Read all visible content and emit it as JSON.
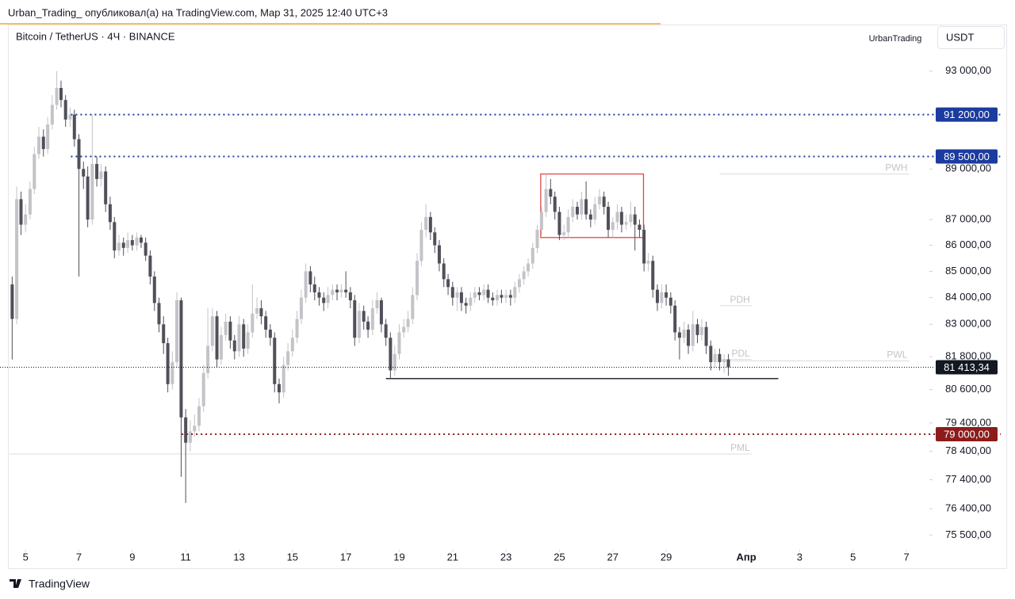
{
  "header": {
    "publisher": "Urban_Trading_ опубликовал(а) на TradingView.com, Мар 31, 2025 12:40 UTC+3",
    "brand": "TradingView"
  },
  "chart_data": {
    "type": "candlestick",
    "title": "Bitcoin / TetherUS · 4Ч · BINANCE",
    "author": "UrbanTrading",
    "currency": "USDT",
    "log_scale": true,
    "up_color": "#c3c3c8",
    "down_color": "#50505a",
    "xlim": [
      4.4,
      38.8
    ],
    "ylim": [
      75000,
      95000
    ],
    "xticks": [
      5,
      7,
      9,
      11,
      13,
      15,
      17,
      19,
      21,
      23,
      25,
      27,
      29,
      {
        "value": 32,
        "label": "Апр"
      },
      {
        "value": 34,
        "label": "3"
      },
      {
        "value": 36,
        "label": "5"
      },
      {
        "value": 38,
        "label": "7"
      }
    ],
    "yticks": [
      {
        "value": 93000,
        "label": "93 000,00"
      },
      {
        "value": 89000,
        "label": "89 000,00"
      },
      {
        "value": 87000,
        "label": "87 000,00"
      },
      {
        "value": 86000,
        "label": "86 000,00"
      },
      {
        "value": 85000,
        "label": "85 000,00"
      },
      {
        "value": 84000,
        "label": "84 000,00"
      },
      {
        "value": 83000,
        "label": "83 000,00"
      },
      {
        "value": 81800,
        "label": "81 800,00"
      },
      {
        "value": 80600,
        "label": "80 600,00"
      },
      {
        "value": 79400,
        "label": "79 400,00"
      },
      {
        "value": 78400,
        "label": "78 400,00"
      },
      {
        "value": 77400,
        "label": "77 400,00"
      },
      {
        "value": 76400,
        "label": "76 400,00"
      },
      {
        "value": 75500,
        "label": "75 500,00"
      }
    ],
    "x": [
      4.5,
      4.67,
      4.83,
      5,
      5.17,
      5.33,
      5.5,
      5.67,
      5.83,
      6,
      6.17,
      6.33,
      6.5,
      6.67,
      6.83,
      7,
      7.17,
      7.33,
      7.5,
      7.67,
      7.83,
      8,
      8.17,
      8.33,
      8.5,
      8.67,
      8.83,
      9,
      9.17,
      9.33,
      9.5,
      9.67,
      9.83,
      10,
      10.17,
      10.33,
      10.5,
      10.67,
      10.83,
      11,
      11.17,
      11.33,
      11.5,
      11.67,
      11.83,
      12,
      12.17,
      12.33,
      12.5,
      12.67,
      12.83,
      13,
      13.17,
      13.33,
      13.5,
      13.67,
      13.83,
      14,
      14.17,
      14.33,
      14.5,
      14.67,
      14.83,
      15,
      15.17,
      15.33,
      15.5,
      15.67,
      15.83,
      16,
      16.17,
      16.33,
      16.5,
      16.67,
      16.83,
      17,
      17.17,
      17.33,
      17.5,
      17.67,
      17.83,
      18,
      18.17,
      18.33,
      18.5,
      18.67,
      18.83,
      19,
      19.17,
      19.33,
      19.5,
      19.67,
      19.83,
      20,
      20.17,
      20.33,
      20.5,
      20.67,
      20.83,
      21,
      21.17,
      21.33,
      21.5,
      21.67,
      21.83,
      22,
      22.17,
      22.33,
      22.5,
      22.67,
      22.83,
      23,
      23.17,
      23.33,
      23.5,
      23.67,
      23.83,
      24,
      24.17,
      24.33,
      24.5,
      24.67,
      24.83,
      25,
      25.17,
      25.33,
      25.5,
      25.67,
      25.83,
      26,
      26.17,
      26.33,
      26.5,
      26.67,
      26.83,
      27,
      27.17,
      27.33,
      27.5,
      27.67,
      27.83,
      28,
      28.17,
      28.33,
      28.5,
      28.67,
      28.83,
      29,
      29.17,
      29.33,
      29.5,
      29.67,
      29.83,
      30,
      30.17,
      30.33,
      30.5,
      30.67,
      30.83,
      31,
      31.17,
      31.33
    ],
    "open": [
      84500,
      83200,
      87800,
      86800,
      87200,
      88200,
      89600,
      90300,
      89800,
      90800,
      91600,
      92300,
      91800,
      91000,
      91200,
      90200,
      89000,
      88700,
      87000,
      89200,
      88600,
      88900,
      87600,
      86900,
      85800,
      86100,
      85900,
      86200,
      86000,
      86300,
      86100,
      85600,
      84800,
      83800,
      83000,
      82300,
      80800,
      81600,
      83900,
      79600,
      78700,
      79100,
      79300,
      80000,
      81200,
      82200,
      83300,
      81700,
      82600,
      83100,
      82400,
      82000,
      83000,
      82100,
      82700,
      83400,
      83600,
      83300,
      82800,
      82500,
      80800,
      80500,
      81500,
      82000,
      82500,
      83200,
      84000,
      85000,
      84500,
      84200,
      84000,
      83800,
      84100,
      84300,
      84200,
      84300,
      84200,
      83900,
      82500,
      83500,
      83100,
      82800,
      83600,
      83900,
      83000,
      82500,
      81300,
      81900,
      82700,
      82900,
      83200,
      84100,
      85400,
      86600,
      87100,
      86500,
      86000,
      85300,
      84700,
      84400,
      84000,
      84200,
      83800,
      83700,
      84000,
      84200,
      84100,
      84300,
      84000,
      83900,
      84100,
      84000,
      84100,
      84000,
      84400,
      84700,
      85000,
      85300,
      85900,
      86600,
      87300,
      88200,
      87900,
      87300,
      86400,
      86500,
      87100,
      87500,
      87200,
      87800,
      87200,
      87000,
      87600,
      87900,
      87500,
      86600,
      86900,
      87300,
      86800,
      86900,
      87200,
      86800,
      86600,
      85300,
      85400,
      84300,
      83800,
      84200,
      84000,
      83700,
      82700,
      82500,
      82800,
      82200,
      83000,
      82600,
      82900,
      82200,
      81600,
      81900,
      81600,
      81700
    ],
    "high": [
      84800,
      88300,
      88100,
      87600,
      88500,
      89900,
      90700,
      90600,
      91100,
      92000,
      93000,
      92600,
      92000,
      91500,
      91400,
      90400,
      89300,
      89100,
      91200,
      89500,
      89200,
      89100,
      87900,
      87100,
      86400,
      86300,
      86500,
      86400,
      86500,
      86400,
      86300,
      85800,
      85000,
      84000,
      83300,
      82500,
      82000,
      84200,
      84000,
      79900,
      79500,
      79700,
      80300,
      81500,
      83600,
      83600,
      83500,
      82900,
      83400,
      83300,
      82600,
      83300,
      83200,
      83000,
      84500,
      84000,
      83900,
      83500,
      83000,
      82700,
      81000,
      81800,
      82300,
      82800,
      83500,
      84300,
      85300,
      85200,
      84800,
      84400,
      84200,
      84400,
      84500,
      84500,
      84500,
      85000,
      84400,
      84100,
      83800,
      83700,
      83300,
      83900,
      84200,
      84000,
      83200,
      82700,
      82200,
      83000,
      83200,
      83500,
      84400,
      85700,
      86900,
      87600,
      87300,
      86700,
      86200,
      85500,
      84900,
      84600,
      84400,
      84400,
      84000,
      84200,
      84400,
      84400,
      84500,
      84500,
      84200,
      84300,
      84300,
      84300,
      84300,
      84600,
      84900,
      85200,
      85500,
      86100,
      86800,
      87500,
      88800,
      88600,
      88100,
      87500,
      86800,
      87400,
      87800,
      87700,
      88100,
      88500,
      87400,
      87900,
      88200,
      88100,
      87700,
      87100,
      87600,
      87500,
      87200,
      87700,
      87500,
      87000,
      86800,
      85700,
      85600,
      84500,
      84500,
      84500,
      84200,
      83900,
      82900,
      83100,
      83000,
      83500,
      83200,
      83200,
      83100,
      82400,
      82100,
      82100,
      81900,
      81900
    ],
    "low": [
      81700,
      83000,
      86400,
      86500,
      87000,
      88000,
      89400,
      89500,
      89600,
      90600,
      91400,
      91500,
      90700,
      90700,
      89900,
      84800,
      88200,
      86700,
      86800,
      88300,
      88300,
      87300,
      86600,
      85500,
      85600,
      85600,
      85700,
      85800,
      85800,
      85900,
      85400,
      84500,
      83500,
      82700,
      81900,
      80500,
      80600,
      81400,
      77500,
      76600,
      78400,
      78900,
      79100,
      79800,
      81000,
      82000,
      81400,
      81500,
      82400,
      82100,
      81700,
      81800,
      81800,
      81900,
      82500,
      83200,
      83000,
      82500,
      82200,
      80500,
      80100,
      80300,
      81300,
      81800,
      82300,
      83000,
      83800,
      84200,
      83900,
      83700,
      83500,
      83600,
      83900,
      83900,
      84000,
      84000,
      83600,
      82200,
      82300,
      82800,
      82500,
      82600,
      83400,
      82700,
      82200,
      81000,
      81100,
      81700,
      82500,
      82700,
      83000,
      83900,
      85200,
      86300,
      86200,
      85700,
      85000,
      84400,
      84100,
      83700,
      83500,
      83500,
      83400,
      83500,
      83800,
      83900,
      83900,
      83800,
      83700,
      83700,
      83800,
      83800,
      83700,
      83800,
      84200,
      84500,
      84800,
      85100,
      85700,
      86400,
      87100,
      87600,
      87000,
      86200,
      86200,
      86300,
      86900,
      87000,
      87000,
      87000,
      86700,
      86800,
      87400,
      87200,
      86300,
      86300,
      86600,
      86500,
      86600,
      86700,
      85800,
      86300,
      85000,
      85000,
      84000,
      83500,
      83600,
      83700,
      83400,
      82400,
      81700,
      82300,
      81900,
      82000,
      82300,
      82400,
      81900,
      81300,
      81400,
      81300,
      81200,
      81100
    ],
    "close": [
      83200,
      87800,
      86800,
      87200,
      88200,
      89600,
      90300,
      89800,
      90800,
      91600,
      92300,
      91800,
      91000,
      91200,
      90200,
      89000,
      88700,
      87000,
      89200,
      88600,
      88900,
      87600,
      86900,
      85800,
      86100,
      85900,
      86200,
      86000,
      86300,
      86100,
      85600,
      84800,
      83800,
      83000,
      82300,
      80800,
      81600,
      83900,
      79600,
      78700,
      79100,
      79300,
      80000,
      81200,
      82200,
      83300,
      81700,
      82600,
      83100,
      82400,
      82000,
      83000,
      82100,
      82700,
      83400,
      83600,
      83300,
      82800,
      82500,
      80800,
      80500,
      81500,
      82000,
      82500,
      83200,
      84000,
      85000,
      84500,
      84200,
      84000,
      83800,
      84100,
      84300,
      84200,
      84300,
      84200,
      83900,
      82500,
      83500,
      83100,
      82800,
      83600,
      83900,
      83000,
      82500,
      81300,
      81900,
      82700,
      82900,
      83200,
      84100,
      85400,
      86600,
      87100,
      86500,
      86000,
      85300,
      84700,
      84400,
      84000,
      84200,
      83800,
      83700,
      84000,
      84200,
      84100,
      84300,
      84000,
      83900,
      84100,
      84000,
      84100,
      84000,
      84400,
      84700,
      85000,
      85300,
      85900,
      86600,
      87300,
      88200,
      87900,
      87300,
      86400,
      86500,
      87100,
      87500,
      87200,
      87800,
      87200,
      87000,
      87600,
      87900,
      87500,
      86600,
      86900,
      87300,
      86800,
      86900,
      87200,
      86800,
      86600,
      85300,
      85400,
      84300,
      83800,
      84200,
      84000,
      83700,
      82700,
      82500,
      82800,
      82200,
      83000,
      82600,
      82900,
      82200,
      81600,
      81900,
      81600,
      81700,
      81413.34
    ],
    "levels": [
      {
        "value": 91200,
        "label": "91 200,00",
        "color": "#1c3b9e",
        "start": 6.7
      },
      {
        "value": 89500,
        "label": "89 500,00",
        "color": "#1c3b9e",
        "start": 6.7
      },
      {
        "value": 79000,
        "label": "79 000,00",
        "color": "#8c1c1c",
        "start": 10.85
      }
    ],
    "last_price": {
      "value": 81413.34,
      "label": "81 413,34",
      "color": "#131722"
    },
    "support": {
      "value": 81000,
      "x": [
        18.5,
        33.2
      ],
      "color": "#131722"
    },
    "zone": {
      "x": [
        24.3,
        28.15
      ],
      "y": [
        86300,
        88800
      ],
      "color": "#e04848"
    },
    "reference_lines": [
      {
        "label": "PWH",
        "value": 88800,
        "x": [
          31.0,
          38.1
        ]
      },
      {
        "label": "PDH",
        "value": 83700,
        "x": [
          31.0,
          32.2
        ]
      },
      {
        "label": "PDL",
        "value": 81700,
        "x": [
          31.0,
          32.2
        ]
      },
      {
        "label": "PWL",
        "value": 81650,
        "x": [
          31.0,
          38.1
        ]
      },
      {
        "label": "PML",
        "value": 78300,
        "x": [
          4.4,
          32.2
        ]
      }
    ]
  }
}
